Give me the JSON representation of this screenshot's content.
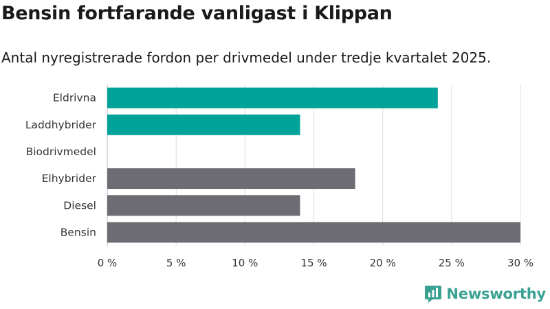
{
  "chart_data": {
    "type": "bar",
    "orientation": "horizontal",
    "title": "Bensin fortfarande vanligast i Klippan",
    "subtitle": "Antal nyregistrerade fordon per drivmedel under tredje kvartalet 2025.",
    "categories": [
      "Eldrivna",
      "Laddhybrider",
      "Biodrivmedel",
      "Elhybrider",
      "Diesel",
      "Bensin"
    ],
    "values": [
      24,
      14,
      0,
      18,
      14,
      30
    ],
    "colors": [
      "#00a39a",
      "#00a39a",
      "#00a39a",
      "#6d6c73",
      "#6d6c73",
      "#6d6c73"
    ],
    "xlim": [
      0,
      30
    ],
    "xticks": [
      0,
      5,
      10,
      15,
      20,
      25,
      30
    ],
    "xtick_labels": [
      "0 %",
      "5 %",
      "10 %",
      "15 %",
      "20 %",
      "25 %",
      "30 %"
    ],
    "unit": "%",
    "grid": "vertical",
    "xlabel": "",
    "ylabel": ""
  },
  "brand": {
    "name": "Newsworthy",
    "color": "#3aa193",
    "icon": "newsworthy-logo-icon"
  }
}
